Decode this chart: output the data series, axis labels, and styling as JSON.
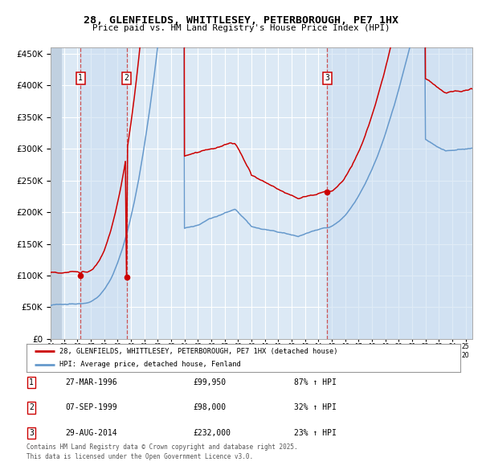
{
  "title": "28, GLENFIELDS, WHITTLESEY, PETERBOROUGH, PE7 1HX",
  "subtitle": "Price paid vs. HM Land Registry's House Price Index (HPI)",
  "legend_line1": "28, GLENFIELDS, WHITTLESEY, PETERBOROUGH, PE7 1HX (detached house)",
  "legend_line2": "HPI: Average price, detached house, Fenland",
  "footer": "Contains HM Land Registry data © Crown copyright and database right 2025.\nThis data is licensed under the Open Government Licence v3.0.",
  "sale1_label": "1",
  "sale1_date": "27-MAR-1996",
  "sale1_price": "£99,950",
  "sale1_hpi": "87% ↑ HPI",
  "sale1_year": 1996.23,
  "sale1_value": 99950,
  "sale2_label": "2",
  "sale2_date": "07-SEP-1999",
  "sale2_price": "£98,000",
  "sale2_hpi": "32% ↑ HPI",
  "sale2_year": 1999.68,
  "sale2_value": 98000,
  "sale3_label": "3",
  "sale3_date": "29-AUG-2014",
  "sale3_price": "£232,000",
  "sale3_hpi": "23% ↑ HPI",
  "sale3_year": 2014.66,
  "sale3_value": 232000,
  "red_color": "#cc0000",
  "blue_color": "#6699cc",
  "bg_color": "#dce9f5",
  "grid_color": "#ffffff",
  "dashed_color": "#cc4444",
  "ylim_max": 460000,
  "ylim_min": 0,
  "xlim_min": 1994.0,
  "xlim_max": 2025.5
}
